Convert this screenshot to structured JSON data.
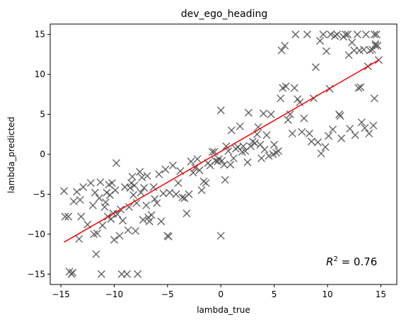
{
  "chart_data": {
    "type": "scatter",
    "title": "dev_ego_heading",
    "xlabel": "lambda_true",
    "ylabel": "lambda_predicted",
    "xlim": [
      -16.0,
      16.5
    ],
    "ylim": [
      -16.3,
      16.3
    ],
    "xticks": [
      -15,
      -10,
      -5,
      0,
      5,
      10,
      15
    ],
    "yticks": [
      -15,
      -10,
      -5,
      0,
      5,
      10,
      15
    ],
    "xtick_labels": [
      "−15",
      "−10",
      "−5",
      "0",
      "5",
      "10",
      "15"
    ],
    "ytick_labels": [
      "−15",
      "−10",
      "−5",
      "0",
      "5",
      "10",
      "15"
    ],
    "grid": false,
    "annotation": {
      "prefix": "R",
      "sup": "2",
      "suffix": " = 0.76"
    },
    "marker": "x",
    "marker_color": "#555555",
    "fit_line_color": "#ff0000",
    "fit_line": {
      "x": [
        -14.7,
        14.8
      ],
      "y": [
        -11.0,
        11.8
      ]
    },
    "points": [
      [
        -14.7,
        -4.6
      ],
      [
        -14.6,
        -7.8
      ],
      [
        -14.3,
        -7.8
      ],
      [
        -14.2,
        -14.7
      ],
      [
        -14.0,
        -15.0
      ],
      [
        -13.9,
        -14.8
      ],
      [
        -13.8,
        -5.9
      ],
      [
        -13.5,
        -4.7
      ],
      [
        -13.3,
        -10.6
      ],
      [
        -13.2,
        -5.7
      ],
      [
        -13.1,
        -7.8
      ],
      [
        -12.9,
        -4.1
      ],
      [
        -12.5,
        -8.8
      ],
      [
        -12.2,
        -3.6
      ],
      [
        -12.0,
        -6.4
      ],
      [
        -11.9,
        -10.0
      ],
      [
        -11.8,
        -4.8
      ],
      [
        -11.7,
        -12.5
      ],
      [
        -11.6,
        -9.9
      ],
      [
        -11.4,
        -5.5
      ],
      [
        -11.3,
        -3.5
      ],
      [
        -11.2,
        -15.0
      ],
      [
        -11.1,
        -8.9
      ],
      [
        -10.9,
        -6.6
      ],
      [
        -10.8,
        -6.0
      ],
      [
        -10.7,
        -4.8
      ],
      [
        -10.6,
        -7.8
      ],
      [
        -10.5,
        -3.8
      ],
      [
        -10.4,
        -5.1
      ],
      [
        -10.3,
        -8.1
      ],
      [
        -10.2,
        -3.6
      ],
      [
        -10.1,
        -7.4
      ],
      [
        -10.0,
        -10.7
      ],
      [
        -9.9,
        -4.5
      ],
      [
        -9.8,
        -1.1
      ],
      [
        -9.7,
        -7.5
      ],
      [
        -9.5,
        -10.2
      ],
      [
        -9.4,
        -6.9
      ],
      [
        -9.3,
        -15.0
      ],
      [
        -9.2,
        -8.3
      ],
      [
        -9.0,
        -4.1
      ],
      [
        -8.8,
        -15.0
      ],
      [
        -8.7,
        -9.5
      ],
      [
        -8.6,
        -6.6
      ],
      [
        -8.5,
        -4.2
      ],
      [
        -8.4,
        -3.6
      ],
      [
        -8.3,
        -2.8
      ],
      [
        -8.2,
        -5.1
      ],
      [
        -8.1,
        -3.9
      ],
      [
        -8.0,
        -9.6
      ],
      [
        -7.9,
        -6.1
      ],
      [
        -7.8,
        -15.0
      ],
      [
        -7.6,
        -2.2
      ],
      [
        -7.5,
        -4.8
      ],
      [
        -7.4,
        -2.9
      ],
      [
        -7.3,
        -8.2
      ],
      [
        -7.2,
        -4.2
      ],
      [
        -7.0,
        -6.4
      ],
      [
        -6.9,
        -2.7
      ],
      [
        -6.8,
        -7.9
      ],
      [
        -6.7,
        -8.4
      ],
      [
        -6.5,
        -7.6
      ],
      [
        -6.3,
        -4.1
      ],
      [
        -6.2,
        -5.6
      ],
      [
        -6.0,
        -6.1
      ],
      [
        -5.8,
        -2.5
      ],
      [
        -5.6,
        -8.4
      ],
      [
        -5.4,
        -4.9
      ],
      [
        -5.2,
        -1.9
      ],
      [
        -5.0,
        -10.2
      ],
      [
        -4.9,
        -10.3
      ],
      [
        -4.8,
        -4.8
      ],
      [
        -4.5,
        -1.4
      ],
      [
        -4.2,
        -5.0
      ],
      [
        -4.0,
        -3.6
      ],
      [
        -3.8,
        -2.1
      ],
      [
        -3.6,
        -5.4
      ],
      [
        -3.4,
        -5.5
      ],
      [
        -3.2,
        -7.4
      ],
      [
        -3.0,
        -5.0
      ],
      [
        -2.8,
        -0.9
      ],
      [
        -2.6,
        -2.3
      ],
      [
        -2.4,
        -1.7
      ],
      [
        -2.2,
        -0.6
      ],
      [
        -2.0,
        -2.0
      ],
      [
        -1.8,
        -4.5
      ],
      [
        -1.6,
        -3.4
      ],
      [
        -1.4,
        -3.6
      ],
      [
        -1.2,
        -1.1
      ],
      [
        -1.0,
        -1.4
      ],
      [
        -0.8,
        0.3
      ],
      [
        -0.6,
        0.3
      ],
      [
        -0.5,
        -0.8
      ],
      [
        -0.3,
        -0.9
      ],
      [
        -0.2,
        -0.6
      ],
      [
        0.0,
        5.5
      ],
      [
        0.0,
        -10.2
      ],
      [
        0.1,
        -0.8
      ],
      [
        0.3,
        -1.3
      ],
      [
        0.4,
        -3.2
      ],
      [
        0.5,
        1.0
      ],
      [
        0.7,
        0.4
      ],
      [
        0.9,
        -1.3
      ],
      [
        1.0,
        3.0
      ],
      [
        1.2,
        -0.5
      ],
      [
        1.4,
        0.7
      ],
      [
        1.6,
        0.9
      ],
      [
        1.8,
        3.5
      ],
      [
        2.0,
        0.3
      ],
      [
        2.1,
        1.0
      ],
      [
        2.3,
        0.4
      ],
      [
        2.5,
        -1.0
      ],
      [
        2.6,
        5.2
      ],
      [
        2.8,
        1.0
      ],
      [
        3.0,
        1.6
      ],
      [
        3.2,
        1.4
      ],
      [
        3.4,
        2.5
      ],
      [
        3.5,
        3.4
      ],
      [
        3.7,
        1.2
      ],
      [
        3.8,
        -0.5
      ],
      [
        4.0,
        5.1
      ],
      [
        4.1,
        0.6
      ],
      [
        4.3,
        2.4
      ],
      [
        4.5,
        -0.2
      ],
      [
        4.7,
        5.0
      ],
      [
        4.9,
        0.0
      ],
      [
        5.0,
        1.2
      ],
      [
        5.2,
        0.2
      ],
      [
        5.4,
        0.4
      ],
      [
        5.6,
        7.0
      ],
      [
        5.7,
        13.0
      ],
      [
        5.8,
        8.3
      ],
      [
        6.0,
        13.6
      ],
      [
        6.1,
        8.5
      ],
      [
        6.3,
        4.3
      ],
      [
        6.5,
        5.0
      ],
      [
        6.7,
        2.6
      ],
      [
        6.9,
        8.3
      ],
      [
        7.0,
        15.0
      ],
      [
        7.2,
        6.9
      ],
      [
        7.4,
        6.5
      ],
      [
        7.6,
        2.8
      ],
      [
        7.8,
        4.5
      ],
      [
        8.1,
        15.0
      ],
      [
        8.3,
        2.6
      ],
      [
        8.5,
        1.6
      ],
      [
        8.7,
        7.0
      ],
      [
        8.9,
        10.9
      ],
      [
        9.1,
        1.5
      ],
      [
        9.3,
        14.2
      ],
      [
        9.4,
        0.1
      ],
      [
        9.6,
        15.0
      ],
      [
        9.8,
        0.9
      ],
      [
        9.9,
        12.9
      ],
      [
        10.1,
        2.3
      ],
      [
        10.2,
        8.2
      ],
      [
        10.3,
        15.0
      ],
      [
        10.5,
        3.1
      ],
      [
        10.7,
        14.8
      ],
      [
        10.9,
        15.0
      ],
      [
        11.1,
        5.0
      ],
      [
        11.2,
        4.8
      ],
      [
        11.3,
        2.0
      ],
      [
        11.5,
        14.7
      ],
      [
        11.7,
        15.0
      ],
      [
        11.9,
        15.0
      ],
      [
        12.0,
        12.4
      ],
      [
        12.1,
        3.2
      ],
      [
        12.3,
        14.0
      ],
      [
        12.5,
        13.0
      ],
      [
        12.6,
        2.4
      ],
      [
        12.8,
        15.0
      ],
      [
        12.9,
        8.3
      ],
      [
        13.0,
        13.0
      ],
      [
        13.1,
        8.4
      ],
      [
        13.2,
        4.0
      ],
      [
        13.4,
        13.1
      ],
      [
        13.5,
        3.3
      ],
      [
        13.6,
        15.0
      ],
      [
        13.8,
        11.0
      ],
      [
        13.9,
        2.6
      ],
      [
        14.0,
        13.0
      ],
      [
        14.2,
        13.1
      ],
      [
        14.3,
        3.6
      ],
      [
        14.4,
        15.0
      ],
      [
        14.5,
        13.6
      ],
      [
        14.5,
        13.8
      ],
      [
        14.6,
        15.0
      ],
      [
        14.7,
        13.6
      ],
      [
        14.8,
        11.8
      ],
      [
        14.4,
        7.0
      ]
    ]
  }
}
